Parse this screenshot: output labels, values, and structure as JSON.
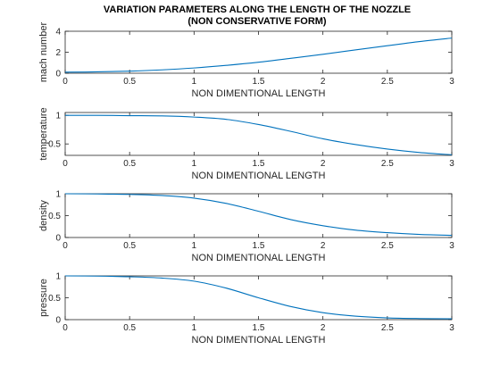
{
  "chart_data": {
    "type": "line",
    "title_lines": [
      "VARIATION PARAMETERS ALONG THE LENGTH OF THE NOZZLE",
      "(NON CONSERVATIVE FORM)"
    ],
    "line_color": "#0072BD",
    "subplots": [
      {
        "ylabel": "mach number",
        "xlabel": "NON DIMENTIONAL LENGTH",
        "xlim": [
          0,
          3
        ],
        "ylim": [
          0,
          4
        ],
        "xticks": [
          "0",
          "0.5",
          "1",
          "1.5",
          "2",
          "2.5",
          "3"
        ],
        "yticks": [
          "0",
          "2",
          "4"
        ],
        "ytick_values": [
          0,
          2,
          4
        ],
        "series": [
          {
            "x": [
              0,
              0.25,
              0.5,
              0.75,
              1.0,
              1.25,
              1.5,
              1.75,
              2.0,
              2.25,
              2.5,
              2.75,
              3.0
            ],
            "values": [
              0.1,
              0.13,
              0.2,
              0.32,
              0.5,
              0.75,
              1.05,
              1.42,
              1.8,
              2.22,
              2.62,
              3.02,
              3.35
            ]
          }
        ]
      },
      {
        "ylabel": "temperature",
        "xlabel": "NON DIMENTIONAL LENGTH",
        "xlim": [
          0,
          3
        ],
        "ylim": [
          0.3,
          1.05
        ],
        "xticks": [
          "0",
          "0.5",
          "1",
          "1.5",
          "2",
          "2.5",
          "3"
        ],
        "yticks": [
          "0.5",
          "1"
        ],
        "ytick_values": [
          0.5,
          1
        ],
        "series": [
          {
            "x": [
              0,
              0.25,
              0.5,
              0.75,
              1.0,
              1.25,
              1.5,
              1.75,
              2.0,
              2.25,
              2.5,
              2.75,
              3.0
            ],
            "values": [
              1.0,
              1.0,
              0.995,
              0.99,
              0.97,
              0.93,
              0.84,
              0.72,
              0.59,
              0.49,
              0.41,
              0.35,
              0.31
            ]
          }
        ]
      },
      {
        "ylabel": "density",
        "xlabel": "NON DIMENTIONAL LENGTH",
        "xlim": [
          0,
          3
        ],
        "ylim": [
          0,
          1
        ],
        "xticks": [
          "0",
          "0.5",
          "1",
          "1.5",
          "2",
          "2.5",
          "3"
        ],
        "yticks": [
          "0",
          "0.5",
          "1"
        ],
        "ytick_values": [
          0,
          0.5,
          1
        ],
        "series": [
          {
            "x": [
              0,
              0.25,
              0.5,
              0.75,
              1.0,
              1.25,
              1.5,
              1.75,
              2.0,
              2.25,
              2.5,
              2.75,
              3.0
            ],
            "values": [
              1.0,
              0.995,
              0.985,
              0.96,
              0.9,
              0.78,
              0.6,
              0.41,
              0.27,
              0.17,
              0.11,
              0.07,
              0.05
            ]
          }
        ]
      },
      {
        "ylabel": "pressure",
        "xlabel": "NON DIMENTIONAL LENGTH",
        "xlim": [
          0,
          3
        ],
        "ylim": [
          0,
          1
        ],
        "xticks": [
          "0",
          "0.5",
          "1",
          "1.5",
          "2",
          "2.5",
          "3"
        ],
        "yticks": [
          "0",
          "0.5",
          "1"
        ],
        "ytick_values": [
          0,
          0.5,
          1
        ],
        "series": [
          {
            "x": [
              0,
              0.25,
              0.5,
              0.75,
              1.0,
              1.25,
              1.5,
              1.75,
              2.0,
              2.25,
              2.5,
              2.75,
              3.0
            ],
            "values": [
              1.0,
              0.995,
              0.98,
              0.95,
              0.88,
              0.72,
              0.5,
              0.3,
              0.16,
              0.08,
              0.04,
              0.025,
              0.02
            ]
          }
        ]
      }
    ]
  }
}
